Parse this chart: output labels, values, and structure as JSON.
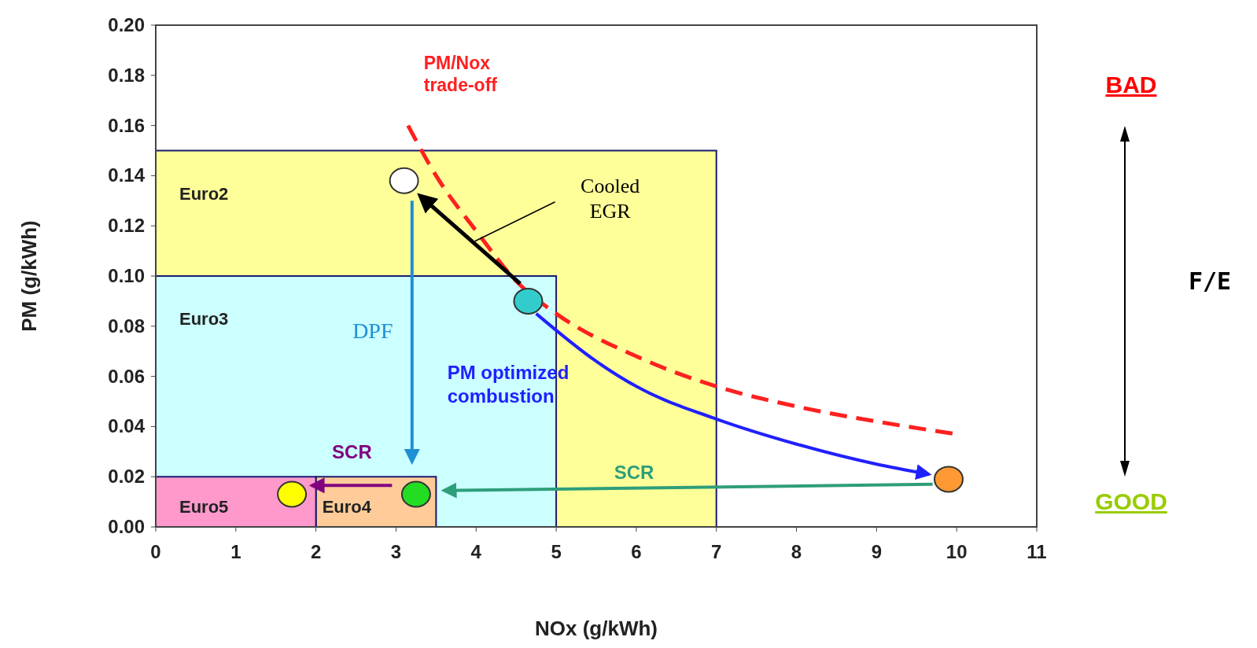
{
  "chart_data": {
    "type": "scatter",
    "xlabel": "NOx (g/kWh)",
    "ylabel": "PM (g/kWh)",
    "xlim": [
      0,
      11
    ],
    "xticks": [
      0,
      1,
      2,
      3,
      4,
      5,
      6,
      7,
      8,
      9,
      10,
      11
    ],
    "ylim": [
      0,
      0.2
    ],
    "yticks": [
      {
        "value": 0,
        "label": "0.00"
      },
      {
        "value": 0.02,
        "label": "0.02"
      },
      {
        "value": 0.04,
        "label": "0.04"
      },
      {
        "value": 0.06,
        "label": "0.06"
      },
      {
        "value": 0.08,
        "label": "0.08"
      },
      {
        "value": 0.1,
        "label": "0.10"
      },
      {
        "value": 0.12,
        "label": "0.12"
      },
      {
        "value": 0.14,
        "label": "0.14"
      },
      {
        "value": 0.16,
        "label": "0.16"
      },
      {
        "value": 0.18,
        "label": "0.18"
      },
      {
        "value": 0.2,
        "label": "0.20"
      }
    ],
    "grid": false,
    "series": [
      {
        "type": "area",
        "name": "Euro2",
        "color": "#ffff99",
        "x": [
          0,
          7
        ],
        "values": [
          0.15,
          0.15
        ]
      },
      {
        "type": "area",
        "name": "Euro3",
        "color": "#ccffff",
        "x": [
          0,
          5
        ],
        "values": [
          0.1,
          0.1
        ]
      },
      {
        "type": "area",
        "name": "Euro4",
        "color": "#ffcc99",
        "x": [
          2,
          3.5
        ],
        "values": [
          0.02,
          0.02
        ]
      },
      {
        "type": "area",
        "name": "Euro5",
        "color": "#ff99cc",
        "x": [
          0,
          2
        ],
        "values": [
          0.02,
          0.02
        ]
      },
      {
        "type": "line",
        "name": "PM/Nox\ntrade-off",
        "color": "#ff2020",
        "line_style": "dashed",
        "marker": "none",
        "x": [
          3.15,
          3.5,
          4,
          4.5,
          5,
          6,
          7,
          8,
          9,
          10
        ],
        "values": [
          0.16,
          0.14,
          0.118,
          0.098,
          0.085,
          0.068,
          0.056,
          0.048,
          0.042,
          0.037
        ]
      },
      {
        "type": "line",
        "name": "Cooled\nEGR",
        "color": "#000000",
        "line_style": "solid",
        "marker": "none",
        "x": [
          4.55,
          3.3
        ],
        "values": [
          0.097,
          0.132
        ]
      },
      {
        "type": "line",
        "name": "DPF",
        "color": "#1f8fd6",
        "line_style": "solid",
        "marker": "none",
        "x": [
          3.2,
          3.2
        ],
        "values": [
          0.13,
          0.026
        ]
      },
      {
        "type": "line",
        "name": "PM optimized\ncombustion",
        "color": "#2020ff",
        "line_style": "solid",
        "marker": "none",
        "x": [
          4.75,
          5.5,
          6,
          7,
          8,
          9,
          9.65
        ],
        "values": [
          0.085,
          0.066,
          0.056,
          0.043,
          0.033,
          0.025,
          0.021
        ]
      },
      {
        "type": "line",
        "name": "SCR",
        "color": "#2e9e7a",
        "line_style": "solid",
        "marker": "none",
        "x": [
          9.7,
          3.6
        ],
        "values": [
          0.017,
          0.0145
        ]
      },
      {
        "type": "line",
        "name": "SCR",
        "color": "#800080",
        "line_style": "solid",
        "marker": "none",
        "x": [
          2.95,
          1.95
        ],
        "values": [
          0.0165,
          0.0165
        ]
      },
      {
        "marker": "circle",
        "x": [
          3.1,
          4.65,
          9.9,
          3.25,
          1.7
        ],
        "values": [
          0.138,
          0.09,
          0.019,
          0.013,
          0.013
        ],
        "colors": [
          "#ffffff",
          "#33cccc",
          "#ff9933",
          "#22dd22",
          "#ffff00"
        ]
      }
    ],
    "annotations": [
      "BAD",
      "F/E",
      "GOOD"
    ]
  }
}
